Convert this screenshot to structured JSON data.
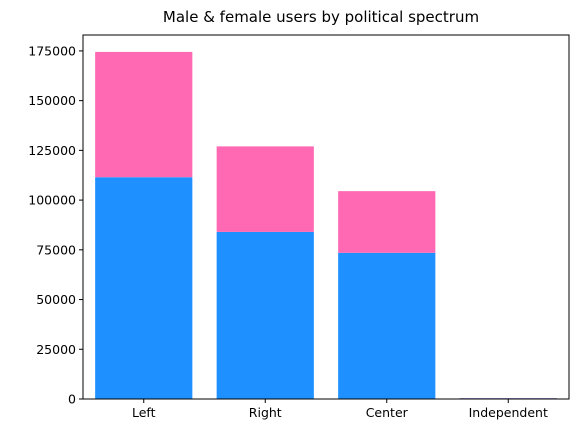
{
  "chart_data": {
    "type": "bar",
    "stacked": true,
    "title": "Male & female users by political spectrum",
    "xlabel": "",
    "ylabel": "",
    "categories": [
      "Left",
      "Right",
      "Center",
      "Independent"
    ],
    "series": [
      {
        "values": [
          111500,
          84000,
          73500,
          400
        ],
        "color": "#1e90ff"
      },
      {
        "values": [
          63000,
          43000,
          31000,
          100
        ],
        "color": "#ff69b4"
      }
    ],
    "ylim": [
      0,
      183000
    ],
    "yticks": [
      0,
      25000,
      50000,
      75000,
      100000,
      125000,
      150000,
      175000
    ],
    "ytick_labels": [
      "0",
      "25000",
      "50000",
      "75000",
      "100000",
      "125000",
      "150000",
      "175000"
    ],
    "grid": false,
    "legend": "none"
  }
}
